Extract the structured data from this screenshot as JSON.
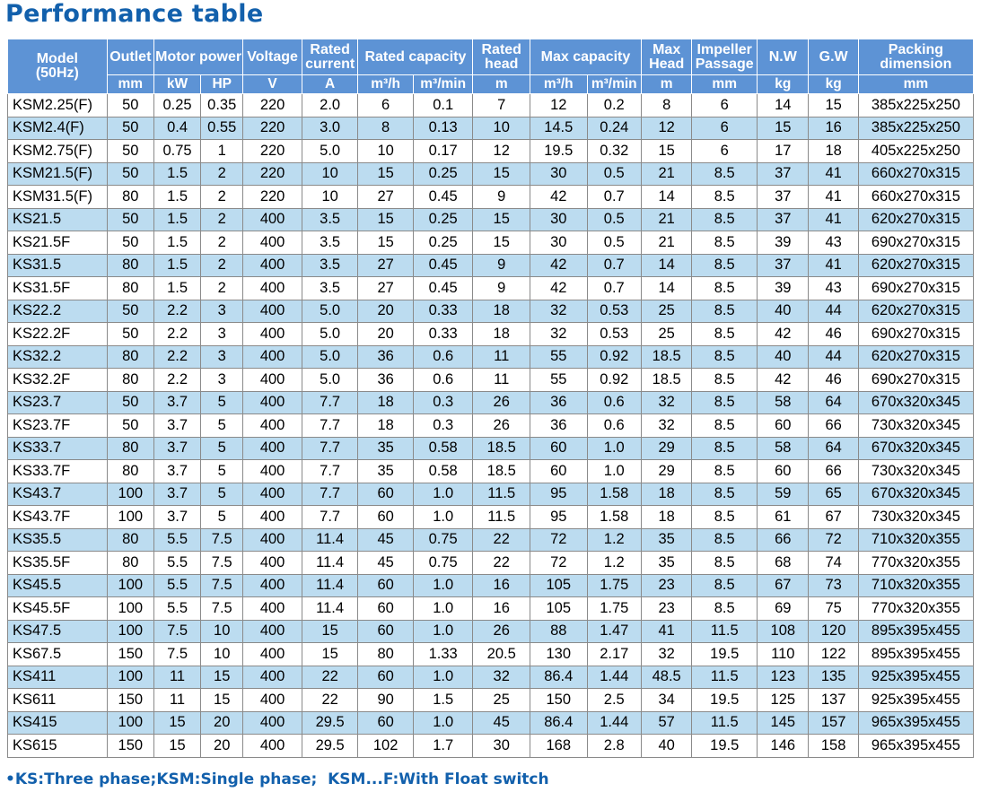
{
  "title": "Performance table",
  "header": {
    "model": "Model\n(50Hz)",
    "outlet": "Outlet",
    "motor_power": "Motor power",
    "voltage": "Voltage",
    "rated_current": "Rated current",
    "rated_capacity": "Rated capacity",
    "rated_head": "Rated head",
    "max_capacity": "Max capacity",
    "max_head": "Max Head",
    "impeller_passage": "Impeller Passage",
    "nw": "N.W",
    "gw": "G.W",
    "packing": "Packing dimension",
    "units": [
      "mm",
      "kW",
      "HP",
      "V",
      "A",
      "m³/h",
      "m³/min",
      "m",
      "m³/h",
      "m³/min",
      "m",
      "mm",
      "kg",
      "kg",
      "mm"
    ]
  },
  "rows": [
    [
      "KSM2.25(F)",
      "50",
      "0.25",
      "0.35",
      "220",
      "2.0",
      "6",
      "0.1",
      "7",
      "12",
      "0.2",
      "8",
      "6",
      "14",
      "15",
      "385x225x250"
    ],
    [
      "KSM2.4(F)",
      "50",
      "0.4",
      "0.55",
      "220",
      "3.0",
      "8",
      "0.13",
      "10",
      "14.5",
      "0.24",
      "12",
      "6",
      "15",
      "16",
      "385x225x250"
    ],
    [
      "KSM2.75(F)",
      "50",
      "0.75",
      "1",
      "220",
      "5.0",
      "10",
      "0.17",
      "12",
      "19.5",
      "0.32",
      "15",
      "6",
      "17",
      "18",
      "405x225x250"
    ],
    [
      "KSM21.5(F)",
      "50",
      "1.5",
      "2",
      "220",
      "10",
      "15",
      "0.25",
      "15",
      "30",
      "0.5",
      "21",
      "8.5",
      "37",
      "41",
      "660x270x315"
    ],
    [
      "KSM31.5(F)",
      "80",
      "1.5",
      "2",
      "220",
      "10",
      "27",
      "0.45",
      "9",
      "42",
      "0.7",
      "14",
      "8.5",
      "37",
      "41",
      "660x270x315"
    ],
    [
      "KS21.5",
      "50",
      "1.5",
      "2",
      "400",
      "3.5",
      "15",
      "0.25",
      "15",
      "30",
      "0.5",
      "21",
      "8.5",
      "37",
      "41",
      "620x270x315"
    ],
    [
      "KS21.5F",
      "50",
      "1.5",
      "2",
      "400",
      "3.5",
      "15",
      "0.25",
      "15",
      "30",
      "0.5",
      "21",
      "8.5",
      "39",
      "43",
      "690x270x315"
    ],
    [
      "KS31.5",
      "80",
      "1.5",
      "2",
      "400",
      "3.5",
      "27",
      "0.45",
      "9",
      "42",
      "0.7",
      "14",
      "8.5",
      "37",
      "41",
      "620x270x315"
    ],
    [
      "KS31.5F",
      "80",
      "1.5",
      "2",
      "400",
      "3.5",
      "27",
      "0.45",
      "9",
      "42",
      "0.7",
      "14",
      "8.5",
      "39",
      "43",
      "690x270x315"
    ],
    [
      "KS22.2",
      "50",
      "2.2",
      "3",
      "400",
      "5.0",
      "20",
      "0.33",
      "18",
      "32",
      "0.53",
      "25",
      "8.5",
      "40",
      "44",
      "620x270x315"
    ],
    [
      "KS22.2F",
      "50",
      "2.2",
      "3",
      "400",
      "5.0",
      "20",
      "0.33",
      "18",
      "32",
      "0.53",
      "25",
      "8.5",
      "42",
      "46",
      "690x270x315"
    ],
    [
      "KS32.2",
      "80",
      "2.2",
      "3",
      "400",
      "5.0",
      "36",
      "0.6",
      "11",
      "55",
      "0.92",
      "18.5",
      "8.5",
      "40",
      "44",
      "620x270x315"
    ],
    [
      "KS32.2F",
      "80",
      "2.2",
      "3",
      "400",
      "5.0",
      "36",
      "0.6",
      "11",
      "55",
      "0.92",
      "18.5",
      "8.5",
      "42",
      "46",
      "690x270x315"
    ],
    [
      "KS23.7",
      "50",
      "3.7",
      "5",
      "400",
      "7.7",
      "18",
      "0.3",
      "26",
      "36",
      "0.6",
      "32",
      "8.5",
      "58",
      "64",
      "670x320x345"
    ],
    [
      "KS23.7F",
      "50",
      "3.7",
      "5",
      "400",
      "7.7",
      "18",
      "0.3",
      "26",
      "36",
      "0.6",
      "32",
      "8.5",
      "60",
      "66",
      "730x320x345"
    ],
    [
      "KS33.7",
      "80",
      "3.7",
      "5",
      "400",
      "7.7",
      "35",
      "0.58",
      "18.5",
      "60",
      "1.0",
      "29",
      "8.5",
      "58",
      "64",
      "670x320x345"
    ],
    [
      "KS33.7F",
      "80",
      "3.7",
      "5",
      "400",
      "7.7",
      "35",
      "0.58",
      "18.5",
      "60",
      "1.0",
      "29",
      "8.5",
      "60",
      "66",
      "730x320x345"
    ],
    [
      "KS43.7",
      "100",
      "3.7",
      "5",
      "400",
      "7.7",
      "60",
      "1.0",
      "11.5",
      "95",
      "1.58",
      "18",
      "8.5",
      "59",
      "65",
      "670x320x345"
    ],
    [
      "KS43.7F",
      "100",
      "3.7",
      "5",
      "400",
      "7.7",
      "60",
      "1.0",
      "11.5",
      "95",
      "1.58",
      "18",
      "8.5",
      "61",
      "67",
      "730x320x345"
    ],
    [
      "KS35.5",
      "80",
      "5.5",
      "7.5",
      "400",
      "11.4",
      "45",
      "0.75",
      "22",
      "72",
      "1.2",
      "35",
      "8.5",
      "66",
      "72",
      "710x320x355"
    ],
    [
      "KS35.5F",
      "80",
      "5.5",
      "7.5",
      "400",
      "11.4",
      "45",
      "0.75",
      "22",
      "72",
      "1.2",
      "35",
      "8.5",
      "68",
      "74",
      "770x320x355"
    ],
    [
      "KS45.5",
      "100",
      "5.5",
      "7.5",
      "400",
      "11.4",
      "60",
      "1.0",
      "16",
      "105",
      "1.75",
      "23",
      "8.5",
      "67",
      "73",
      "710x320x355"
    ],
    [
      "KS45.5F",
      "100",
      "5.5",
      "7.5",
      "400",
      "11.4",
      "60",
      "1.0",
      "16",
      "105",
      "1.75",
      "23",
      "8.5",
      "69",
      "75",
      "770x320x355"
    ],
    [
      "KS47.5",
      "100",
      "7.5",
      "10",
      "400",
      "15",
      "60",
      "1.0",
      "26",
      "88",
      "1.47",
      "41",
      "11.5",
      "108",
      "120",
      "895x395x455"
    ],
    [
      "KS67.5",
      "150",
      "7.5",
      "10",
      "400",
      "15",
      "80",
      "1.33",
      "20.5",
      "130",
      "2.17",
      "32",
      "19.5",
      "110",
      "122",
      "895x395x455"
    ],
    [
      "KS411",
      "100",
      "11",
      "15",
      "400",
      "22",
      "60",
      "1.0",
      "32",
      "86.4",
      "1.44",
      "48.5",
      "11.5",
      "123",
      "135",
      "925x395x455"
    ],
    [
      "KS611",
      "150",
      "11",
      "15",
      "400",
      "22",
      "90",
      "1.5",
      "25",
      "150",
      "2.5",
      "34",
      "19.5",
      "125",
      "137",
      "925x395x455"
    ],
    [
      "KS415",
      "100",
      "15",
      "20",
      "400",
      "29.5",
      "60",
      "1.0",
      "45",
      "86.4",
      "1.44",
      "57",
      "11.5",
      "145",
      "157",
      "965x395x455"
    ],
    [
      "KS615",
      "150",
      "15",
      "20",
      "400",
      "29.5",
      "102",
      "1.7",
      "30",
      "168",
      "2.8",
      "40",
      "19.5",
      "146",
      "158",
      "965x395x455"
    ]
  ],
  "footnote": "•KS:Three phase;KSM:Single phase;  KSM...F:With Float switch",
  "colors": {
    "title": "#1260ac",
    "header_bg": "#5d93d5",
    "stripe": "#bcdcf0"
  }
}
